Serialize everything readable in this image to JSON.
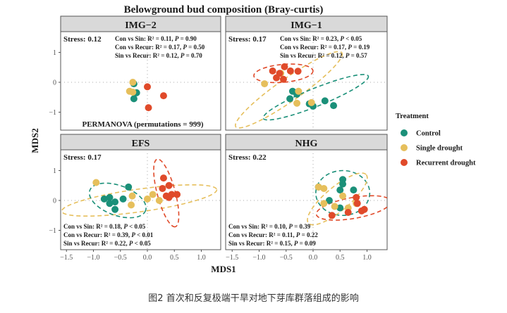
{
  "chart_data": {
    "type": "scatter",
    "title": "Belowground bud composition (Bray-curtis)",
    "xlabel": "MDS1",
    "ylabel": "MDS2",
    "xlim": [
      -1.6,
      1.4
    ],
    "ylim": [
      -1.6,
      1.75
    ],
    "x_ticks": [
      "-1.5",
      "-1.0",
      "-0.5",
      "0.0",
      "0.5",
      "1.0"
    ],
    "x_tick_values": [
      -1.5,
      -1.0,
      -0.5,
      0.0,
      0.5,
      1.0
    ],
    "y_ticks": [
      "-1",
      "0",
      "1"
    ],
    "y_tick_values": [
      -1,
      0,
      1
    ],
    "grid": "dotted zero lines",
    "legend": {
      "title": "Treatment",
      "position": "right",
      "entries": [
        {
          "name": "Control",
          "color": "#1b9079"
        },
        {
          "name": "Single drought",
          "color": "#e6bf5c"
        },
        {
          "name": "Recurrent drought",
          "color": "#e04a2a"
        }
      ]
    },
    "panels": [
      {
        "strip": "IMG−2",
        "stress": "Stress: 0.12",
        "stats_position": "top",
        "stats": [
          {
            "label": "Con vs Sin: R² = 0.11,  ",
            "p": "P = 0.90"
          },
          {
            "label": "Con vs Recur: R² = 0.17,  ",
            "p": "P = 0.50"
          },
          {
            "label": "Sin  vs Recur: R² = 0.12,  ",
            "p": "P = 0.70"
          }
        ],
        "annotation": "PERMANOVA (permutations = 999)",
        "series": [
          {
            "name": "Control",
            "points": [
              [
                -0.25,
                -0.05
              ],
              [
                -0.2,
                -0.35
              ],
              [
                -0.25,
                -0.55
              ]
            ]
          },
          {
            "name": "Single drought",
            "points": [
              [
                -0.27,
                0.0
              ],
              [
                -0.33,
                -0.3
              ],
              [
                -0.27,
                -0.33
              ]
            ]
          },
          {
            "name": "Recurrent drought",
            "points": [
              [
                0.0,
                -0.15
              ],
              [
                0.3,
                -0.45
              ],
              [
                0.02,
                -0.85
              ]
            ]
          }
        ],
        "ellipses": []
      },
      {
        "strip": "IMG−1",
        "stress": "Stress: 0.17",
        "stats_position": "top",
        "stats": [
          {
            "label": "Con vs Sin: R² = 0.23,  ",
            "p": "P < 0.05"
          },
          {
            "label": "Con vs Recur: R² = 0.17,  ",
            "p": "P = 0.19"
          },
          {
            "label": "Sin  vs Recur: R² = 0.12,  ",
            "p": "P = 0.57"
          }
        ],
        "annotation": "",
        "series": [
          {
            "name": "Control",
            "points": [
              [
                -0.38,
                -0.3
              ],
              [
                -0.43,
                -0.55
              ],
              [
                -0.07,
                -0.72
              ],
              [
                0.0,
                -0.8
              ],
              [
                0.22,
                -0.62
              ],
              [
                0.38,
                -0.78
              ],
              [
                -0.3,
                -0.4
              ]
            ]
          },
          {
            "name": "Single drought",
            "points": [
              [
                -0.9,
                -0.05
              ],
              [
                -0.27,
                -0.3
              ],
              [
                -0.3,
                -0.7
              ],
              [
                -0.03,
                -0.68
              ],
              [
                -0.6,
                0.3
              ]
            ]
          },
          {
            "name": "Recurrent drought",
            "points": [
              [
                -0.75,
                0.38
              ],
              [
                -0.53,
                0.52
              ],
              [
                -0.42,
                0.38
              ],
              [
                -0.28,
                0.37
              ],
              [
                -0.62,
                0.3
              ],
              [
                -0.68,
                0.15
              ],
              [
                -0.55,
                0.1
              ]
            ]
          }
        ],
        "ellipses": [
          {
            "series": "Single drought",
            "cx": -0.45,
            "cy": -0.25,
            "rx": 1.2,
            "ry": 0.38,
            "angle": -35
          },
          {
            "series": "Control",
            "cx": 0.05,
            "cy": -0.5,
            "rx": 1.05,
            "ry": 0.3,
            "angle": -22
          },
          {
            "series": "Recurrent drought",
            "cx": -0.55,
            "cy": 0.3,
            "rx": 0.55,
            "ry": 0.3,
            "angle": -5
          }
        ]
      },
      {
        "strip": "EFS",
        "stress": "Stress: 0.17",
        "stats_position": "bottom",
        "stats": [
          {
            "label": "Con vs Sin: R² = 0.18,  ",
            "p": "P < 0.05"
          },
          {
            "label": "Con vs Recur: R² = 0.39,  ",
            "p": "P < 0.01"
          },
          {
            "label": "Sin  vs Recur: R² = 0.22,  ",
            "p": "P < 0.05"
          }
        ],
        "annotation": "",
        "series": [
          {
            "name": "Control",
            "points": [
              [
                -0.8,
                0.05
              ],
              [
                -0.7,
                0.1
              ],
              [
                -0.6,
                -0.05
              ],
              [
                -0.7,
                -0.1
              ],
              [
                -0.6,
                -0.3
              ],
              [
                -0.35,
                0.45
              ],
              [
                -0.45,
                0.05
              ]
            ]
          },
          {
            "name": "Single drought",
            "points": [
              [
                -0.95,
                0.6
              ],
              [
                -0.28,
                0.15
              ],
              [
                -0.3,
                -0.15
              ],
              [
                -0.0,
                0.05
              ],
              [
                0.1,
                0.2
              ],
              [
                0.22,
                0.0
              ]
            ]
          },
          {
            "name": "Recurrent drought",
            "points": [
              [
                0.3,
                0.75
              ],
              [
                0.28,
                0.4
              ],
              [
                0.4,
                0.5
              ],
              [
                0.35,
                0.15
              ],
              [
                0.45,
                0.2
              ],
              [
                0.55,
                0.2
              ],
              [
                0.4,
                0.1
              ]
            ]
          }
        ],
        "ellipses": [
          {
            "series": "Single drought",
            "cx": -0.15,
            "cy": 0.0,
            "rx": 1.45,
            "ry": 0.38,
            "angle": -8
          },
          {
            "series": "Control",
            "cx": -0.55,
            "cy": 0.0,
            "rx": 0.55,
            "ry": 0.5,
            "angle": 20
          },
          {
            "series": "Recurrent drought",
            "cx": 0.35,
            "cy": 0.25,
            "rx": 0.65,
            "ry": 0.3,
            "angle": 75
          }
        ]
      },
      {
        "strip": "NHG",
        "stress": "Stress: 0.22",
        "stats_position": "bottom",
        "stats": [
          {
            "label": "Con vs Sin: R² = 0.10,  ",
            "p": "P = 0.39"
          },
          {
            "label": "Con vs Recur: R² = 0.11,  ",
            "p": "P = 0.22"
          },
          {
            "label": "Sin  vs Recur: R² = 0.15,  ",
            "p": "P = 0.09"
          }
        ],
        "annotation": "",
        "series": [
          {
            "name": "Control",
            "points": [
              [
                0.55,
                0.7
              ],
              [
                0.55,
                0.55
              ],
              [
                0.5,
                0.35
              ],
              [
                0.75,
                0.35
              ],
              [
                0.1,
                0.45
              ],
              [
                0.3,
                0.0
              ],
              [
                0.5,
                -0.25
              ]
            ]
          },
          {
            "name": "Single drought",
            "points": [
              [
                0.1,
                0.45
              ],
              [
                0.2,
                0.4
              ],
              [
                0.55,
                0.15
              ],
              [
                0.4,
                -0.2
              ],
              [
                0.2,
                -0.1
              ],
              [
                0.65,
                -0.25
              ],
              [
                0.8,
                -0.1
              ]
            ]
          },
          {
            "name": "Recurrent drought",
            "points": [
              [
                0.8,
                0.1
              ],
              [
                0.82,
                -0.1
              ],
              [
                0.9,
                -0.35
              ],
              [
                0.35,
                -0.5
              ],
              [
                0.65,
                -0.4
              ],
              [
                0.95,
                -0.3
              ]
            ]
          }
        ],
        "ellipses": [
          {
            "series": "Control",
            "cx": 0.55,
            "cy": 0.25,
            "rx": 0.5,
            "ry": 0.75,
            "angle": 0
          },
          {
            "series": "Single drought",
            "cx": 0.45,
            "cy": 0.05,
            "rx": 0.7,
            "ry": 0.4,
            "angle": -40
          },
          {
            "series": "Recurrent drought",
            "cx": 0.75,
            "cy": -0.25,
            "rx": 0.7,
            "ry": 0.35,
            "angle": -10
          }
        ]
      }
    ]
  },
  "caption": "图2  首次和反复极端干旱对地下芽库群落组成的影响"
}
